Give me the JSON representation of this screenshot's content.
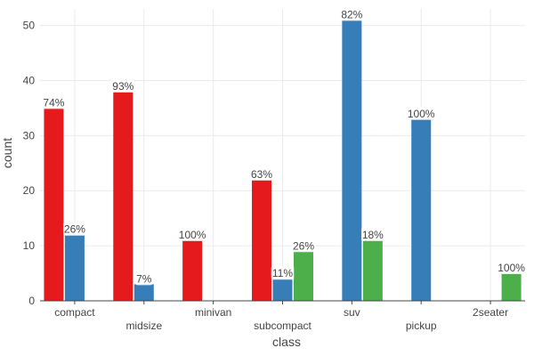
{
  "chart_data": {
    "type": "bar",
    "title": "",
    "xlabel": "class",
    "ylabel": "count",
    "ylim": [
      0,
      53
    ],
    "yticks": [
      0,
      10,
      20,
      30,
      40,
      50
    ],
    "grid": true,
    "legend": "none",
    "categories": [
      "compact",
      "midsize",
      "minivan",
      "subcompact",
      "suv",
      "pickup",
      "2seater"
    ],
    "series": [
      {
        "color": "#e41a1c",
        "values": [
          35,
          38,
          11,
          22,
          0,
          0,
          0
        ],
        "labels": [
          "74%",
          "93%",
          "100%",
          "63%",
          "",
          "",
          ""
        ]
      },
      {
        "color": "#377eb8",
        "values": [
          12,
          3,
          0,
          4,
          51,
          33,
          0
        ],
        "labels": [
          "26%",
          "7%",
          "",
          "11%",
          "82%",
          "100%",
          ""
        ]
      },
      {
        "color": "#4daf4a",
        "values": [
          0,
          0,
          0,
          9,
          11,
          0,
          5
        ],
        "labels": [
          "",
          "",
          "",
          "26%",
          "18%",
          "",
          "100%"
        ]
      }
    ]
  }
}
